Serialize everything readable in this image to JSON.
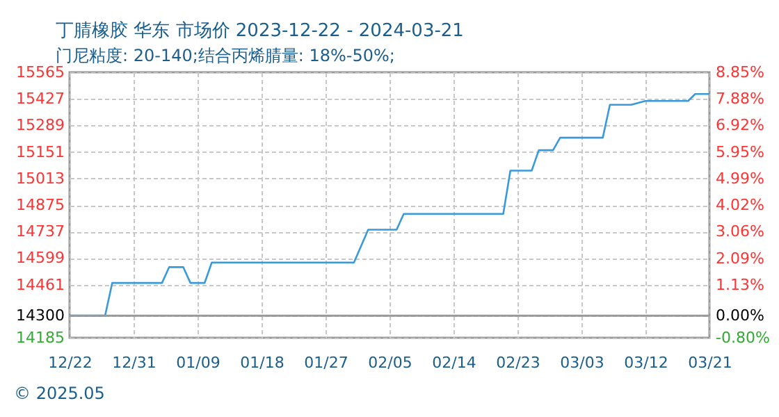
{
  "chart_data": {
    "type": "line",
    "title": "丁腈橡胶 华东 市场价 2023-12-22 - 2024-03-21",
    "subtitle": "门尼粘度: 20-140;结合丙烯腈量: 18%-50%;",
    "x": [
      "2023-12-22",
      "2023-12-27",
      "2023-12-28",
      "2024-01-04",
      "2024-01-05",
      "2024-01-07",
      "2024-01-08",
      "2024-01-10",
      "2024-01-11",
      "2024-01-31",
      "2024-02-02",
      "2024-02-06",
      "2024-02-07",
      "2024-02-21",
      "2024-02-22",
      "2024-02-25",
      "2024-02-26",
      "2024-02-28",
      "2024-02-29",
      "2024-03-06",
      "2024-03-07",
      "2024-03-10",
      "2024-03-12",
      "2024-03-18",
      "2024-03-19",
      "2024-03-21"
    ],
    "series": [
      {
        "color": "#3a9ad9",
        "values": [
          14300,
          14300,
          14470,
          14470,
          14552,
          14552,
          14470,
          14470,
          14576,
          14576,
          14747,
          14747,
          14829,
          14829,
          15054,
          15054,
          15160,
          15160,
          15225,
          15225,
          15396,
          15396,
          15416,
          15416,
          15452,
          15452
        ]
      }
    ],
    "xlim": [
      "2023-12-22",
      "2024-03-21"
    ],
    "xticks": [
      {
        "value": "2023-12-22",
        "label": "12/22"
      },
      {
        "value": "2023-12-31",
        "label": "12/31"
      },
      {
        "value": "2024-01-09",
        "label": "01/09"
      },
      {
        "value": "2024-01-18",
        "label": "01/18"
      },
      {
        "value": "2024-01-27",
        "label": "01/27"
      },
      {
        "value": "2024-02-05",
        "label": "02/05"
      },
      {
        "value": "2024-02-14",
        "label": "02/14"
      },
      {
        "value": "2024-02-23",
        "label": "02/23"
      },
      {
        "value": "2024-03-03",
        "label": "03/03"
      },
      {
        "value": "2024-03-12",
        "label": "03/12"
      },
      {
        "value": "2024-03-21",
        "label": "03/21"
      }
    ],
    "ylim": [
      14185,
      15565
    ],
    "yticks": [
      14185,
      14300,
      14461,
      14599,
      14737,
      14875,
      15013,
      15151,
      15289,
      15427,
      15565
    ],
    "y2lim": [
      -0.8,
      8.85
    ],
    "y2ticks": [
      {
        "value": -0.8,
        "label": "-0.80%"
      },
      {
        "value": 0,
        "label": "0.00%"
      },
      {
        "value": 1.13,
        "label": "1.13%"
      },
      {
        "value": 2.09,
        "label": "2.09%"
      },
      {
        "value": 3.06,
        "label": "3.06%"
      },
      {
        "value": 4.02,
        "label": "4.02%"
      },
      {
        "value": 4.99,
        "label": "4.99%"
      },
      {
        "value": 5.95,
        "label": "5.95%"
      },
      {
        "value": 6.92,
        "label": "6.92%"
      },
      {
        "value": 7.88,
        "label": "7.88%"
      },
      {
        "value": 8.85,
        "label": "8.85%"
      }
    ],
    "ref_lines": [
      {
        "axis": "y2",
        "value": 0,
        "color": "#999999"
      }
    ],
    "grid": true,
    "annotations": [
      "© 2025.05"
    ]
  }
}
